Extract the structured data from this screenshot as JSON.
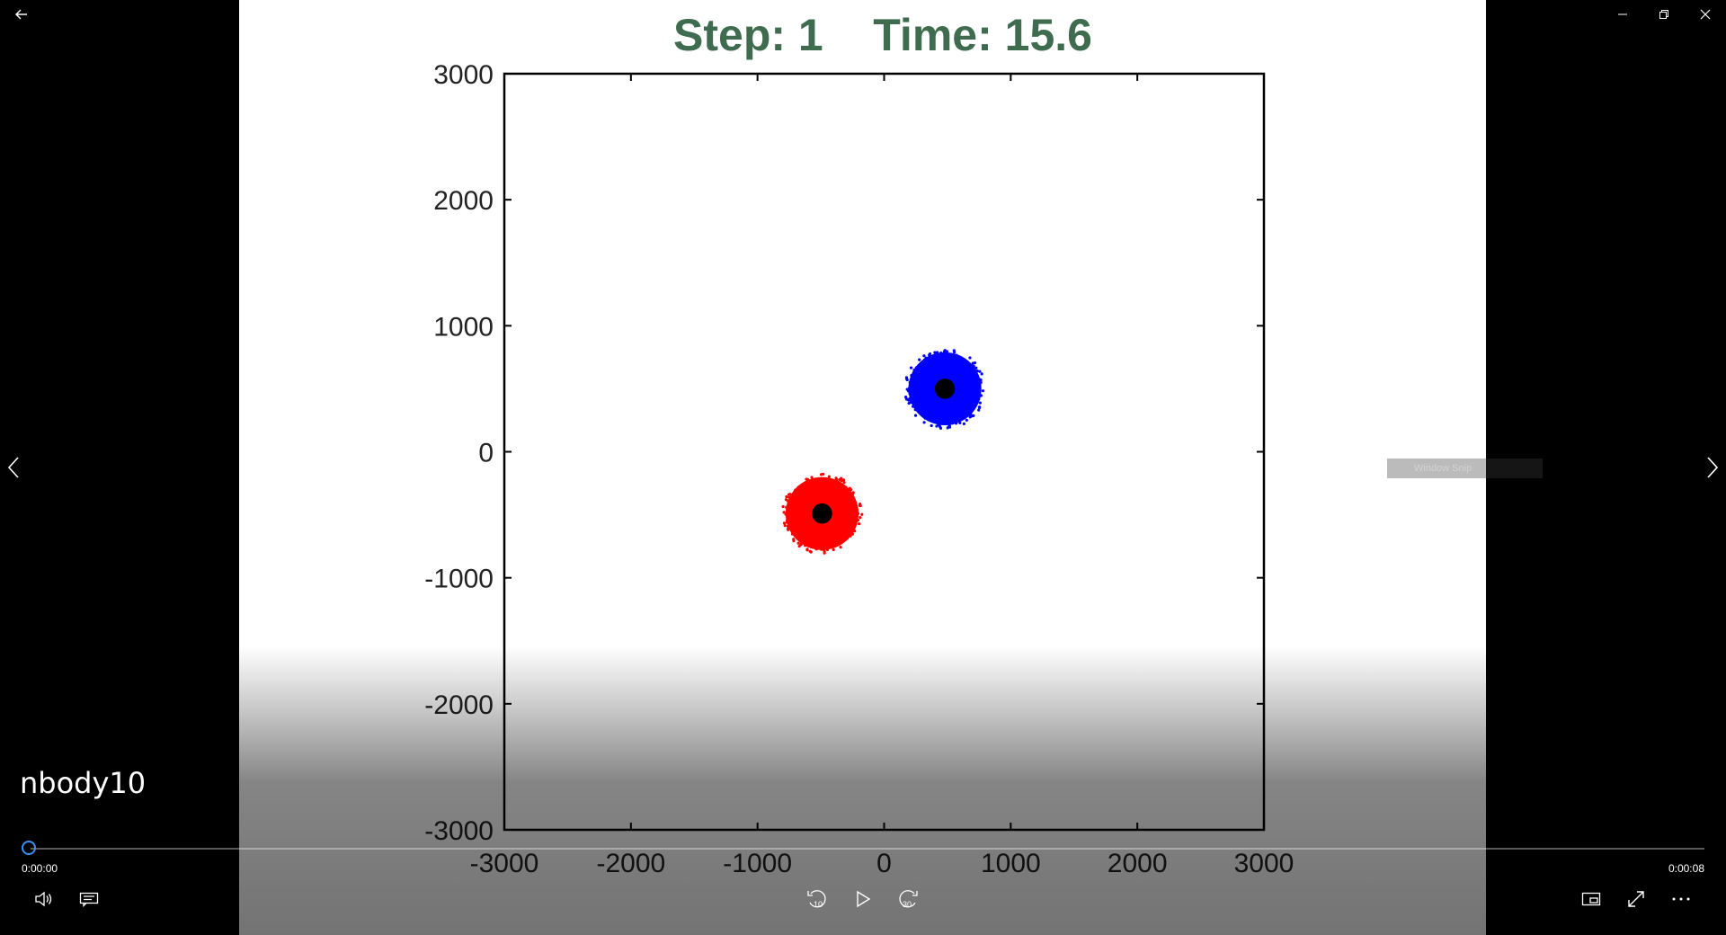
{
  "window": {
    "title": "nbody10"
  },
  "player": {
    "current_time": "0:00:00",
    "total_time": "0:00:08",
    "progress": 0,
    "skip_back_label": "10",
    "skip_forward_label": "30",
    "overlay_text": "Window Snip"
  },
  "colors": {
    "accent": "#3a8ff0",
    "title_green": "#3f6b4f"
  },
  "chart_data": {
    "type": "scatter",
    "title": "Step: 1    Time: 15.6",
    "xlim": [
      -3000,
      3000
    ],
    "ylim": [
      -3000,
      3000
    ],
    "x_ticks": [
      -3000,
      -2000,
      -1000,
      0,
      1000,
      2000,
      3000
    ],
    "y_ticks": [
      3000,
      2000,
      1000,
      0,
      -1000,
      -2000,
      -3000
    ],
    "x_tick_labels": [
      "-3000",
      "-2000",
      "-1000",
      "0",
      "1000",
      "2000",
      "3000"
    ],
    "y_tick_labels": [
      "3000",
      "2000",
      "1000",
      "0",
      "-1000",
      "-2000",
      "-3000"
    ],
    "series": [
      {
        "color": "#0000ff",
        "center": [
          480,
          500
        ],
        "radius": 310,
        "core_radius": 80
      },
      {
        "color": "#ff0000",
        "center": [
          -490,
          -490
        ],
        "radius": 310,
        "core_radius": 80
      }
    ]
  }
}
